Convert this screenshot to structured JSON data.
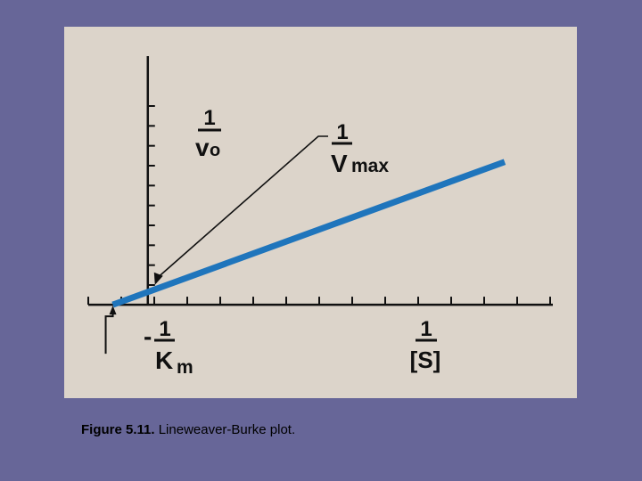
{
  "chart_data": {
    "type": "line",
    "title": "",
    "ylabel": {
      "numerator": "1",
      "denominator": "v",
      "denominator_subscript": "o"
    },
    "xlabel": {
      "numerator": "1",
      "denominator": "[S]"
    },
    "annotations": {
      "y_intercept": {
        "numerator": "1",
        "denominator": "V",
        "denominator_subscript": "max"
      },
      "x_intercept": {
        "sign": "-",
        "numerator": "1",
        "denominator": "K",
        "denominator_subscript": "m"
      }
    },
    "x_tick_count": 15,
    "y_tick_count": 10,
    "grid": false,
    "legend": "none",
    "series": [
      {
        "x": [
          -1,
          10.2
        ],
        "y": [
          0,
          5.4
        ]
      }
    ],
    "xlim": [
      -1.6,
      11.5
    ],
    "ylim": [
      -0.3,
      9.6
    ]
  },
  "colors": {
    "background": "#676698",
    "panel": "#DCD4CA",
    "line": "#1F75BC",
    "axes": "#101010"
  },
  "caption": {
    "label": "Figure 5.11.",
    "text": " Lineweaver-Burke plot."
  }
}
